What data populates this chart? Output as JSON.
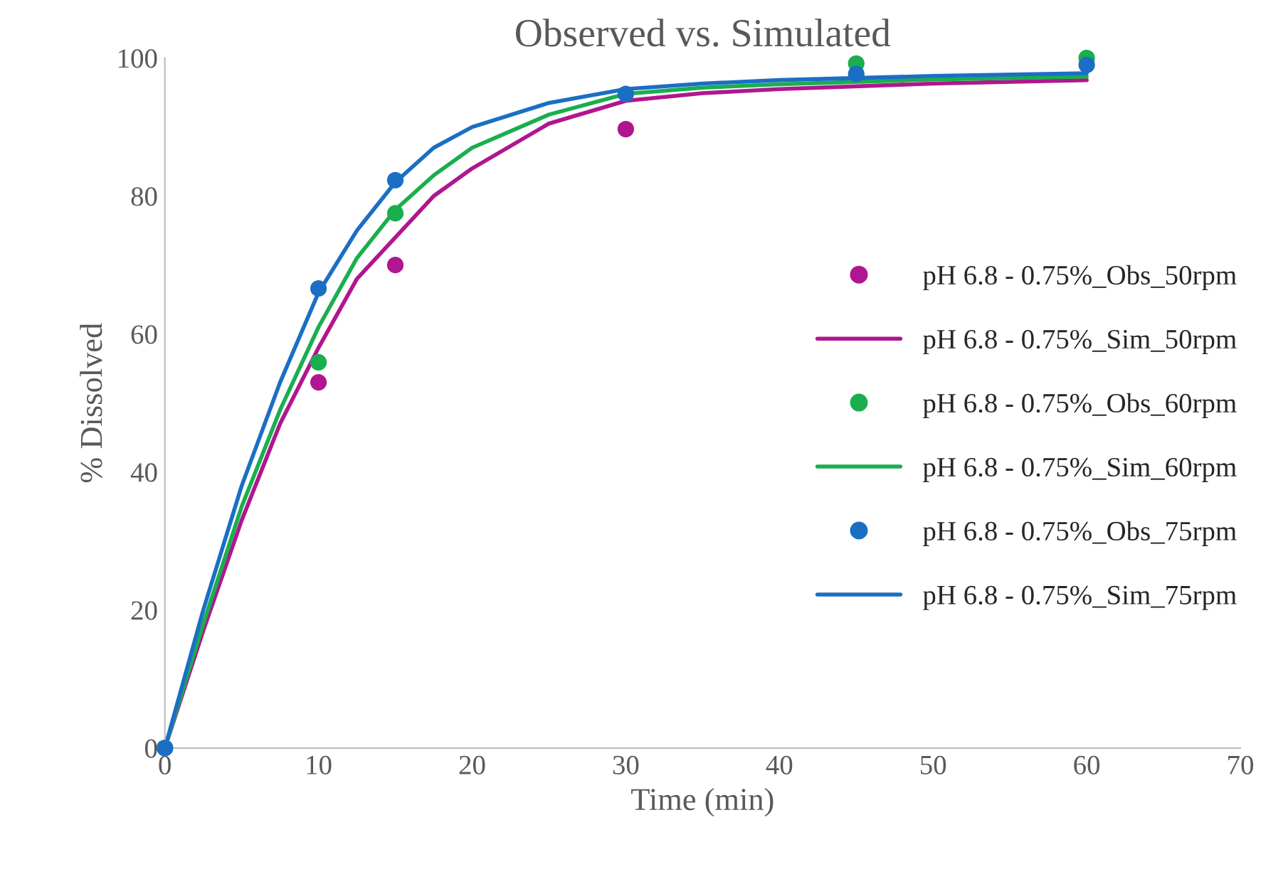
{
  "chart_data": {
    "type": "scatter",
    "title": "Observed vs. Simulated",
    "xlabel": "Time (min)",
    "ylabel": "% Dissolved",
    "xlim": [
      0,
      70
    ],
    "xticks": [
      0,
      10,
      20,
      30,
      40,
      50,
      60,
      70
    ],
    "ylim": [
      0,
      100
    ],
    "yticks": [
      0,
      20,
      40,
      60,
      80,
      100
    ],
    "grid": false,
    "legend": "right",
    "line_style": "solid",
    "series": [
      {
        "name": "pH 6.8 - 0.75%_Obs_50rpm",
        "marker": "circle",
        "color": "#b0168f",
        "x": [
          0,
          10,
          15,
          30
        ],
        "values": [
          0,
          53,
          70,
          89.7
        ]
      },
      {
        "name": "pH 6.8 - 0.75%_Sim_50rpm",
        "type": "line",
        "color": "#b0168f",
        "x": [
          0,
          2.5,
          5,
          7.5,
          10,
          12.5,
          15,
          17.5,
          20,
          25,
          30,
          35,
          40,
          50,
          60
        ],
        "values": [
          0,
          17,
          33,
          47,
          58,
          68,
          74,
          80,
          84,
          90.5,
          93.8,
          94.9,
          95.5,
          96.3,
          96.8
        ]
      },
      {
        "name": "pH 6.8 - 0.75%_Obs_60rpm",
        "marker": "circle",
        "color": "#1aae4e",
        "x": [
          0,
          10,
          15,
          30,
          45,
          60
        ],
        "values": [
          0,
          55.9,
          77.5,
          null,
          99.2,
          100
        ]
      },
      {
        "name": "pH 6.8 - 0.75%_Sim_60rpm",
        "type": "line",
        "color": "#1aae4e",
        "x": [
          0,
          2.5,
          5,
          7.5,
          10,
          12.5,
          15,
          17.5,
          20,
          25,
          30,
          35,
          40,
          50,
          60
        ],
        "values": [
          0,
          18,
          35,
          49,
          61,
          71,
          78,
          83,
          87,
          91.8,
          94.8,
          95.7,
          96.2,
          96.9,
          97.3
        ]
      },
      {
        "name": "pH 6.8 - 0.75%_Obs_75rpm",
        "marker": "circle",
        "color": "#1a6fc4",
        "x": [
          0,
          10,
          15,
          30,
          45,
          60
        ],
        "values": [
          0,
          66.6,
          82.3,
          94.8,
          97.7,
          99
        ]
      },
      {
        "name": "pH 6.8 - 0.75%_Sim_75rpm",
        "type": "line",
        "color": "#1a6fc4",
        "x": [
          0,
          2.5,
          5,
          7.5,
          10,
          12.5,
          15,
          17.5,
          20,
          25,
          30,
          35,
          40,
          50,
          60
        ],
        "values": [
          0,
          20,
          38,
          53,
          66,
          75,
          82,
          87,
          90,
          93.5,
          95.5,
          96.3,
          96.8,
          97.4,
          97.8
        ]
      }
    ]
  }
}
